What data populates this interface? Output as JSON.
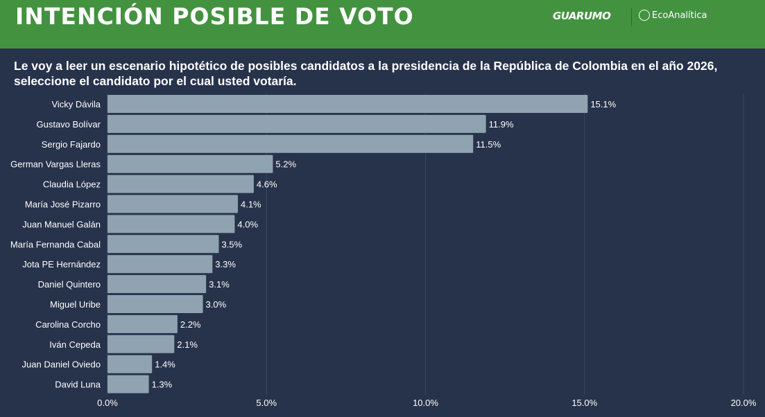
{
  "header": {
    "title": "INTENCIÓN POSIBLE DE VOTO",
    "logo_left": "GUARUMO",
    "logo_right": "EcoAnalítica"
  },
  "question": "Le voy a leer un escenario hipotético de posibles candidatos a la presidencia de la República de Colombia en el año 2026, seleccione el candidato por el cual usted votaría.",
  "colors": {
    "header": "#43923f",
    "background": "#27324b",
    "bar": "#8fa4b0"
  },
  "chart_data": {
    "type": "bar",
    "orientation": "horizontal",
    "grid": true,
    "xlim": [
      0,
      20
    ],
    "categories": [
      "Vicky Dávila",
      "Gustavo Bolívar",
      "Sergio Fajardo",
      "German Vargas Lleras",
      "Claudia López",
      "María José Pizarro",
      "Juan Manuel Galán",
      "María Fernanda Cabal",
      "Jota PE Hernández",
      "Daniel Quintero",
      "Miguel Uribe",
      "Carolina Corcho",
      "Iván Cepeda",
      "Juan Daniel Oviedo",
      "David Luna"
    ],
    "values": [
      15.1,
      11.9,
      11.5,
      5.2,
      4.6,
      4.1,
      4.0,
      3.5,
      3.3,
      3.1,
      3.0,
      2.2,
      2.1,
      1.4,
      1.3
    ],
    "labels": [
      "15.1%",
      "11.9%",
      "11.5%",
      "5.2%",
      "4.6%",
      "4.1%",
      "4.0%",
      "3.5%",
      "3.3%",
      "3.1%",
      "3.0%",
      "2.2%",
      "2.1%",
      "1.4%",
      "1.3%"
    ],
    "ticks": [
      0,
      5,
      10,
      15,
      20
    ],
    "tick_labels": [
      "0.0%",
      "5.0%",
      "10.0%",
      "15.0%",
      "20.0%"
    ]
  }
}
